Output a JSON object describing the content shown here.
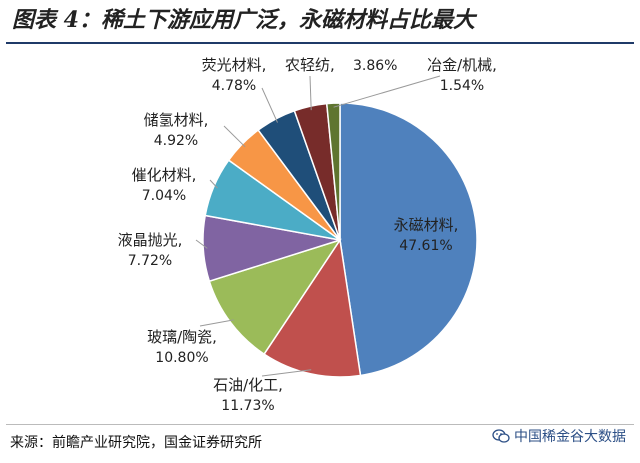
{
  "title": "图表 4：稀土下游应用广泛，永磁材料占比最大",
  "source": "来源：前瞻产业研究院，国金证券研究所",
  "watermark": "中国稀金谷大数据",
  "watermark_icon": "wechat-icon",
  "chart_data": {
    "type": "pie",
    "start_angle_deg": 0,
    "direction": "clockwise",
    "legend": "none",
    "slices": [
      {
        "name": "永磁材料",
        "value": 47.61,
        "label": "47.61%",
        "color": "#4f81bd"
      },
      {
        "name": "石油/化工",
        "value": 11.73,
        "label": "11.73%",
        "color": "#c0504d"
      },
      {
        "name": "玻璃/陶瓷",
        "value": 10.8,
        "label": "10.80%",
        "color": "#9bbb59"
      },
      {
        "name": "液晶抛光",
        "value": 7.72,
        "label": "7.72%",
        "color": "#8064a2"
      },
      {
        "name": "催化材料",
        "value": 7.04,
        "label": "7.04%",
        "color": "#4bacc6"
      },
      {
        "name": "储氢材料",
        "value": 4.92,
        "label": "4.92%",
        "color": "#f79646"
      },
      {
        "name": "荧光材料",
        "value": 4.78,
        "label": "4.78%",
        "color": "#1f4e79"
      },
      {
        "name": "农轻纺",
        "value": 3.86,
        "label": "3.86%",
        "color": "#772c2a"
      },
      {
        "name": "冶金/机械",
        "value": 1.54,
        "label": "1.54%",
        "color": "#5f7530"
      }
    ]
  }
}
